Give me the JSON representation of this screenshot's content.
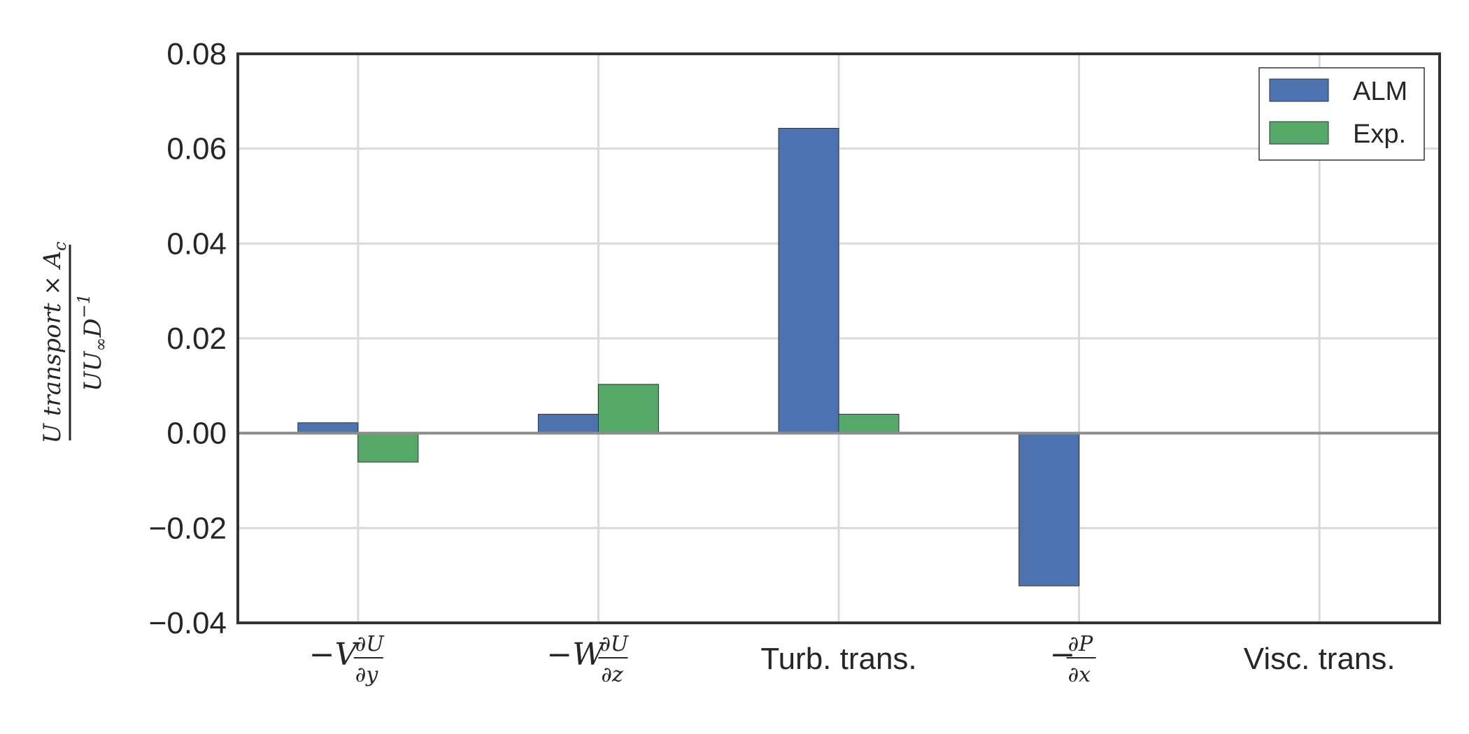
{
  "chart_data": {
    "type": "bar",
    "title": "",
    "xlabel": "",
    "ylabel": "U transport × A_c / (U U∞ D^-1)",
    "ylabel_numerator": "U transport × A",
    "ylabel_numerator_sub": "c",
    "ylabel_denominator": "UU",
    "ylabel_denominator_sub": "∞",
    "ylabel_denominator_rest": "D",
    "ylabel_denominator_sup": "−1",
    "ylim": [
      -0.04,
      0.08
    ],
    "yticks": [
      -0.04,
      -0.02,
      0.0,
      0.02,
      0.04,
      0.06,
      0.08
    ],
    "ytick_labels": [
      "−0.04",
      "−0.02",
      "0.00",
      "0.02",
      "0.04",
      "0.06",
      "0.08"
    ],
    "categories": [
      "−V ∂U/∂y",
      "−W ∂U/∂z",
      "Turb. trans.",
      "−∂P/∂x",
      "Visc. trans."
    ],
    "series": [
      {
        "name": "ALM",
        "color": "#4c72b0",
        "values": [
          0.0022,
          0.004,
          0.0643,
          -0.0322,
          0.0
        ]
      },
      {
        "name": "Exp.",
        "color": "#55a868",
        "values": [
          -0.0061,
          0.0103,
          0.004,
          0.0,
          0.0
        ]
      }
    ],
    "grid": true,
    "legend_position": "top-right",
    "zero_line": true
  }
}
